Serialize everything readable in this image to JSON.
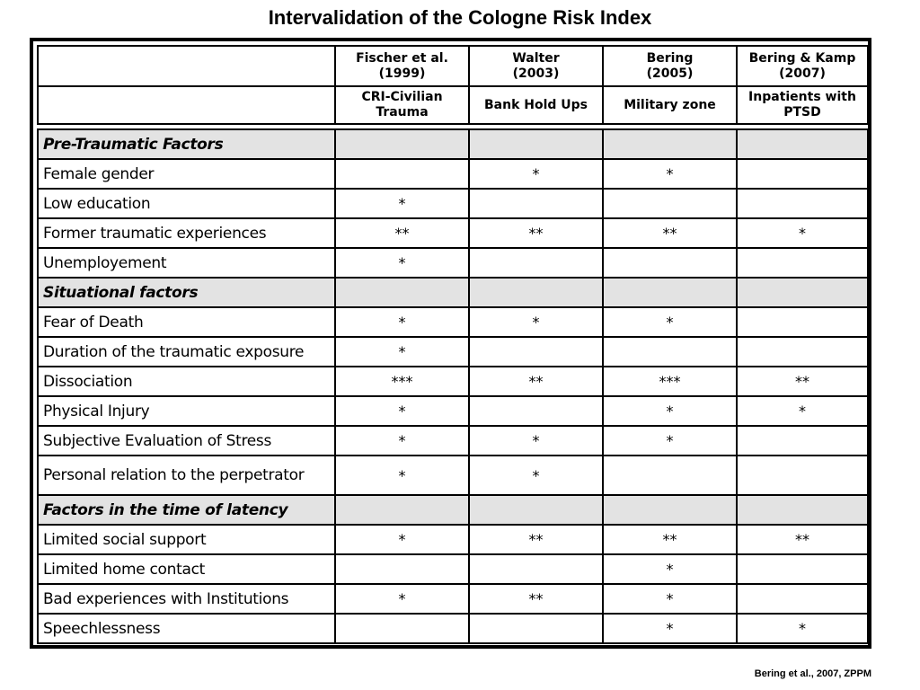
{
  "title": "Intervalidation of the Cologne Risk Index",
  "source": "Bering et al., 2007, ZPPM",
  "studies": [
    {
      "author": "Fischer et al.",
      "year": "(1999)",
      "population_line1": "CRI-Civilian",
      "population_line2": "Trauma"
    },
    {
      "author": "Walter",
      "year": "(2003)",
      "population_line1": "Bank Hold Ups",
      "population_line2": ""
    },
    {
      "author": "Bering",
      "year": "(2005)",
      "population_line1": "Military zone",
      "population_line2": ""
    },
    {
      "author": "Bering & Kamp",
      "year": "(2007)",
      "population_line1": "Inpatients with",
      "population_line2": "PTSD"
    }
  ],
  "rows": [
    {
      "type": "section",
      "label": "Pre-Traumatic Factors",
      "values": [
        "",
        "",
        "",
        ""
      ]
    },
    {
      "type": "factor",
      "label": "Female gender",
      "values": [
        "",
        "*",
        "*",
        ""
      ]
    },
    {
      "type": "factor",
      "label": "Low education",
      "values": [
        "*",
        "",
        "",
        ""
      ]
    },
    {
      "type": "factor",
      "label": "Former traumatic experiences",
      "values": [
        "**",
        "**",
        "**",
        "*"
      ]
    },
    {
      "type": "factor",
      "label": "Unemployement",
      "values": [
        "*",
        "",
        "",
        ""
      ]
    },
    {
      "type": "section",
      "label": "Situational factors",
      "values": [
        "",
        "",
        "",
        ""
      ]
    },
    {
      "type": "factor",
      "label": "Fear of Death",
      "values": [
        "*",
        "*",
        "*",
        ""
      ]
    },
    {
      "type": "factor",
      "label": "Duration of the traumatic exposure",
      "values": [
        "*",
        "",
        "",
        ""
      ]
    },
    {
      "type": "factor",
      "label": "Dissociation",
      "values": [
        "***",
        "**",
        "***",
        "**"
      ]
    },
    {
      "type": "factor",
      "label": "Physical Injury",
      "values": [
        "*",
        "",
        "*",
        "*"
      ]
    },
    {
      "type": "factor",
      "label": "Subjective Evaluation of Stress",
      "values": [
        "*",
        "*",
        "*",
        ""
      ]
    },
    {
      "type": "factor",
      "label": "Personal relation to the perpetrator",
      "values": [
        "*",
        "*",
        "",
        ""
      ]
    },
    {
      "type": "section",
      "label": "Factors in the time of latency",
      "values": [
        "",
        "",
        "",
        ""
      ]
    },
    {
      "type": "factor",
      "label": "Limited social support",
      "values": [
        "*",
        "**",
        "**",
        "**"
      ]
    },
    {
      "type": "factor",
      "label": "Limited home contact",
      "values": [
        "",
        "",
        "*",
        ""
      ]
    },
    {
      "type": "factor",
      "label": "Bad experiences with Institutions",
      "values": [
        "*",
        "**",
        "*",
        ""
      ]
    },
    {
      "type": "factor",
      "label": "Speechlessness",
      "values": [
        "",
        "",
        "*",
        "*"
      ]
    }
  ]
}
